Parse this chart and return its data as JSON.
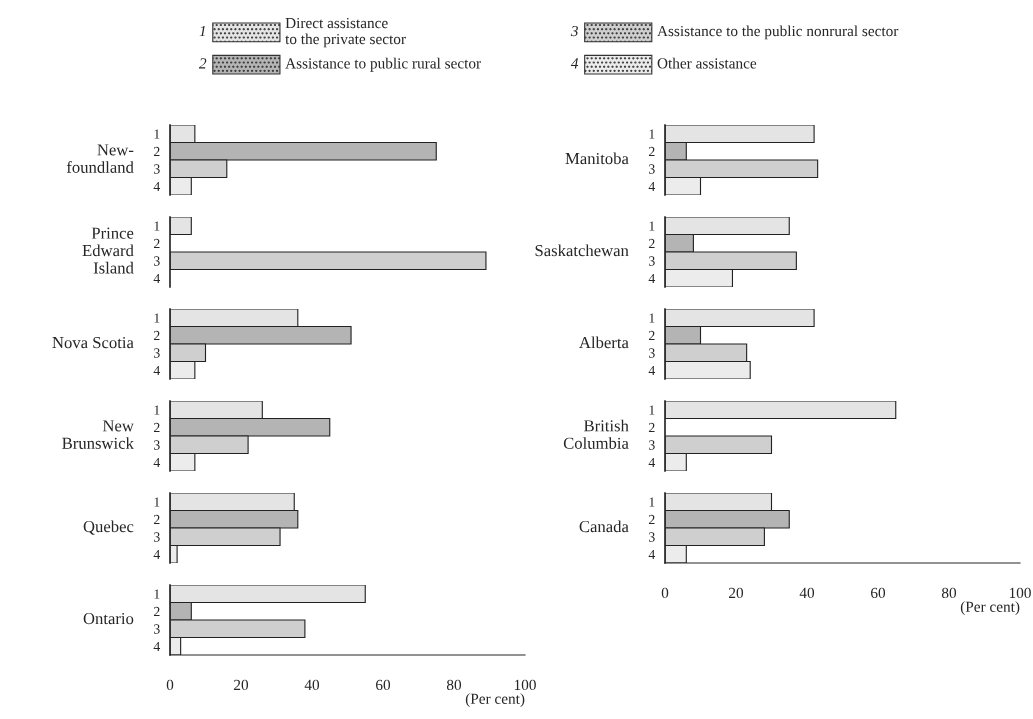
{
  "chart_data": [
    {
      "type": "other",
      "annotations": [
        "1",
        "Direct assistance\nto the private sector",
        "2",
        "Assistance to public rural sector",
        "3",
        "Assistance to the public nonrural sector",
        "4",
        "Other assistance"
      ],
      "colors": [
        "#e4e4e4",
        "#b4b4b4",
        "#cfcfcf",
        "#ececec"
      ]
    },
    {
      "type": "bar",
      "orientation": "horizontal",
      "ylabel": "New-\nfoundland",
      "categories": [
        "1",
        "2",
        "3",
        "4"
      ],
      "values": [
        7,
        75,
        16,
        6
      ],
      "colors": [
        "#e4e4e4",
        "#b4b4b4",
        "#cfcfcf",
        "#ececec"
      ],
      "xlim": [
        0,
        100
      ],
      "tick_labels": "y"
    },
    {
      "type": "bar",
      "orientation": "horizontal",
      "ylabel": "Prince\nEdward\nIsland",
      "categories": [
        "1",
        "2",
        "3",
        "4"
      ],
      "values": [
        6,
        null,
        89,
        null
      ],
      "colors": [
        "#e4e4e4",
        "#b4b4b4",
        "#cfcfcf",
        "#ececec"
      ],
      "xlim": [
        0,
        100
      ],
      "tick_labels": "y"
    },
    {
      "type": "bar",
      "orientation": "horizontal",
      "ylabel": "Nova Scotia",
      "categories": [
        "1",
        "2",
        "3",
        "4"
      ],
      "values": [
        36,
        51,
        10,
        7
      ],
      "colors": [
        "#e4e4e4",
        "#b4b4b4",
        "#cfcfcf",
        "#ececec"
      ],
      "xlim": [
        0,
        100
      ],
      "tick_labels": "y"
    },
    {
      "type": "bar",
      "orientation": "horizontal",
      "ylabel": "New\nBrunswick",
      "categories": [
        "1",
        "2",
        "3",
        "4"
      ],
      "values": [
        26,
        45,
        22,
        7
      ],
      "colors": [
        "#e4e4e4",
        "#b4b4b4",
        "#cfcfcf",
        "#ececec"
      ],
      "xlim": [
        0,
        100
      ],
      "tick_labels": "y"
    },
    {
      "type": "bar",
      "orientation": "horizontal",
      "ylabel": "Quebec",
      "categories": [
        "1",
        "2",
        "3",
        "4"
      ],
      "values": [
        35,
        36,
        31,
        2
      ],
      "colors": [
        "#e4e4e4",
        "#b4b4b4",
        "#cfcfcf",
        "#ececec"
      ],
      "xlim": [
        0,
        100
      ],
      "tick_labels": "y"
    },
    {
      "type": "bar",
      "orientation": "horizontal",
      "ylabel": "Ontario",
      "categories": [
        "1",
        "2",
        "3",
        "4"
      ],
      "values": [
        55,
        6,
        38,
        3
      ],
      "colors": [
        "#e4e4e4",
        "#b4b4b4",
        "#cfcfcf",
        "#ececec"
      ],
      "xlim": [
        0,
        100
      ],
      "xticks": [
        0,
        20,
        40,
        60,
        80,
        100
      ],
      "xlabel": "(Per cent)"
    },
    {
      "type": "bar",
      "orientation": "horizontal",
      "ylabel": "Manitoba",
      "categories": [
        "1",
        "2",
        "3",
        "4"
      ],
      "values": [
        42,
        6,
        43,
        10
      ],
      "colors": [
        "#e4e4e4",
        "#b4b4b4",
        "#cfcfcf",
        "#ececec"
      ],
      "xlim": [
        0,
        100
      ],
      "tick_labels": "y"
    },
    {
      "type": "bar",
      "orientation": "horizontal",
      "ylabel": "Saskatchewan",
      "categories": [
        "1",
        "2",
        "3",
        "4"
      ],
      "values": [
        35,
        8,
        37,
        19
      ],
      "colors": [
        "#e4e4e4",
        "#b4b4b4",
        "#cfcfcf",
        "#ececec"
      ],
      "xlim": [
        0,
        100
      ],
      "tick_labels": "y"
    },
    {
      "type": "bar",
      "orientation": "horizontal",
      "ylabel": "Alberta",
      "categories": [
        "1",
        "2",
        "3",
        "4"
      ],
      "values": [
        42,
        10,
        23,
        24
      ],
      "colors": [
        "#e4e4e4",
        "#b4b4b4",
        "#cfcfcf",
        "#ececec"
      ],
      "xlim": [
        0,
        100
      ],
      "tick_labels": "y"
    },
    {
      "type": "bar",
      "orientation": "horizontal",
      "ylabel": "British\nColumbia",
      "categories": [
        "1",
        "2",
        "3",
        "4"
      ],
      "values": [
        65,
        null,
        30,
        6
      ],
      "colors": [
        "#e4e4e4",
        "#b4b4b4",
        "#cfcfcf",
        "#ececec"
      ],
      "xlim": [
        0,
        100
      ],
      "tick_labels": "y"
    },
    {
      "type": "bar",
      "orientation": "horizontal",
      "ylabel": "Canada",
      "categories": [
        "1",
        "2",
        "3",
        "4"
      ],
      "values": [
        30,
        35,
        28,
        6
      ],
      "colors": [
        "#e4e4e4",
        "#b4b4b4",
        "#cfcfcf",
        "#ececec"
      ],
      "xlim": [
        0,
        100
      ],
      "xticks": [
        0,
        20,
        40,
        60,
        80,
        100
      ],
      "xlabel": "(Per cent)"
    }
  ]
}
